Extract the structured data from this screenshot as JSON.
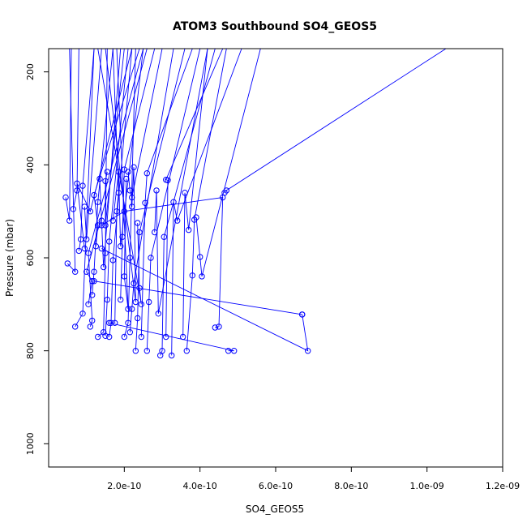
{
  "colors": {
    "series": "#0000ff",
    "axis": "#000000",
    "background": "#ffffff"
  },
  "chart_data": {
    "type": "line",
    "title": "ATOM3 Southbound SO4_GEOS5",
    "xlabel": "SO4_GEOS5",
    "ylabel": "Pressure (mbar)",
    "xlim": [
      0,
      1.2e-09
    ],
    "ylim": [
      1050,
      150
    ],
    "y_reversed": true,
    "grid": false,
    "x_ticks": [
      {
        "value": 2e-10,
        "label": "2.0e-10"
      },
      {
        "value": 4e-10,
        "label": "4.0e-10"
      },
      {
        "value": 6e-10,
        "label": "6.0e-10"
      },
      {
        "value": 8e-10,
        "label": "8.0e-10"
      },
      {
        "value": 1e-09,
        "label": "1.0e-09"
      },
      {
        "value": 1.2e-09,
        "label": "1.2e-09"
      }
    ],
    "y_ticks": [
      {
        "value": 200,
        "label": "200"
      },
      {
        "value": 400,
        "label": "400"
      },
      {
        "value": 600,
        "label": "600"
      },
      {
        "value": 800,
        "label": "800"
      },
      {
        "value": 1000,
        "label": "1000"
      }
    ],
    "series": [
      {
        "x": [
          4.5e-11,
          5.5e-11,
          6e-11
        ],
        "y": [
          470,
          520,
          150
        ]
      },
      {
        "x": [
          5e-11,
          7e-11,
          5.5e-11
        ],
        "y": [
          612,
          630,
          150
        ]
      },
      {
        "x": [
          6.5e-11,
          7.5e-11,
          8e-11
        ],
        "y": [
          495,
          455,
          150
        ]
      },
      {
        "x": [
          7e-11,
          9e-11,
          1.2e-10
        ],
        "y": [
          748,
          720,
          150
        ]
      },
      {
        "x": [
          8e-11,
          8.5e-11,
          9e-11,
          1.2e-10
        ],
        "y": [
          585,
          560,
          445,
          150
        ]
      },
      {
        "x": [
          9.5e-11,
          1e-10,
          1.4e-10
        ],
        "y": [
          490,
          560,
          150
        ]
      },
      {
        "x": [
          1.1e-10,
          1.15e-10,
          1.05e-10,
          2.5e-10
        ],
        "y": [
          748,
          735,
          590,
          150
        ]
      },
      {
        "x": [
          1.15e-10,
          1.2e-10,
          1.3e-10,
          1.7e-10
        ],
        "y": [
          680,
          630,
          480,
          150
        ]
      },
      {
        "x": [
          1.3e-10,
          1.45e-10,
          1.5e-10,
          1.55e-10
        ],
        "y": [
          770,
          760,
          590,
          150
        ]
      },
      {
        "x": [
          1.35e-10,
          1.4e-10,
          1.45e-10,
          1.9e-10
        ],
        "y": [
          430,
          520,
          620,
          150
        ]
      },
      {
        "x": [
          1.5e-10,
          1.55e-10,
          1.6e-10,
          2.1e-10
        ],
        "y": [
          768,
          690,
          565,
          150
        ]
      },
      {
        "x": [
          1.6e-10,
          1.65e-10,
          1.7e-10,
          2.2e-10
        ],
        "y": [
          770,
          740,
          605,
          150
        ]
      },
      {
        "x": [
          1.75e-10,
          1.8e-10,
          1.85e-10,
          1.7e-10
        ],
        "y": [
          740,
          500,
          460,
          150
        ]
      },
      {
        "x": [
          1.9e-10,
          1.95e-10,
          2e-10,
          2.8e-10
        ],
        "y": [
          690,
          555,
          410,
          150
        ]
      },
      {
        "x": [
          2e-10,
          2.1e-10,
          2.15e-10,
          2.3e-10
        ],
        "y": [
          770,
          740,
          600,
          150
        ]
      },
      {
        "x": [
          2.1e-10,
          2.15e-10,
          2.2e-10,
          3e-10
        ],
        "y": [
          415,
          455,
          470,
          150
        ]
      },
      {
        "x": [
          2.15e-10,
          2.2e-10,
          2.25e-10,
          3.3e-10
        ],
        "y": [
          760,
          710,
          655,
          150
        ]
      },
      {
        "x": [
          2.3e-10,
          2.35e-10,
          2.4e-10,
          3.6e-10
        ],
        "y": [
          800,
          730,
          545,
          150
        ]
      },
      {
        "x": [
          2.45e-10,
          2.55e-10,
          2.6e-10,
          3.8e-10
        ],
        "y": [
          770,
          482,
          418,
          150
        ]
      },
      {
        "x": [
          2.6e-10,
          2.65e-10,
          2.7e-10,
          4e-10
        ],
        "y": [
          800,
          695,
          600,
          150
        ]
      },
      {
        "x": [
          2.8e-10,
          2.85e-10,
          2.9e-10,
          4.2e-10
        ],
        "y": [
          545,
          455,
          720,
          150
        ]
      },
      {
        "x": [
          2.95e-10,
          3e-10,
          3.05e-10,
          4.4e-10
        ],
        "y": [
          810,
          800,
          555,
          150
        ]
      },
      {
        "x": [
          3.1e-10,
          3.15e-10,
          3.1e-10,
          4.6e-10
        ],
        "y": [
          770,
          433,
          432,
          150
        ]
      },
      {
        "x": [
          3.25e-10,
          3.3e-10,
          3.4e-10,
          5.1e-10
        ],
        "y": [
          810,
          480,
          520,
          150
        ]
      },
      {
        "x": [
          3.55e-10,
          3.6e-10,
          3.7e-10,
          4.2e-10
        ],
        "y": [
          770,
          460,
          540,
          150
        ]
      },
      {
        "x": [
          3.65e-10,
          3.8e-10,
          3.85e-10,
          4.7e-10
        ],
        "y": [
          800,
          638,
          518,
          150
        ]
      },
      {
        "x": [
          3.9e-10,
          4e-10,
          4.05e-10,
          5.6e-10
        ],
        "y": [
          513,
          598,
          640,
          150
        ]
      },
      {
        "x": [
          4.4e-10,
          4.5e-10,
          4.6e-10,
          2e-10,
          1.4e-10
        ],
        "y": [
          750,
          748,
          470,
          500,
          530
        ]
      },
      {
        "x": [
          4.65e-10,
          4.7e-10,
          1.05e-09
        ],
        "y": [
          460,
          455,
          150
        ]
      },
      {
        "x": [
          4.75e-10,
          4.9e-10,
          1.6e-10
        ],
        "y": [
          800,
          800,
          740
        ]
      },
      {
        "x": [
          6.7e-10,
          6.85e-10,
          1.4e-10
        ],
        "y": [
          722,
          800,
          580
        ]
      },
      {
        "x": [
          1.2e-10,
          6.7e-10
        ],
        "y": [
          650,
          722
        ]
      },
      {
        "x": [
          9.5e-11,
          7.5e-11,
          1.1e-10,
          2.2e-10
        ],
        "y": [
          580,
          440,
          500,
          150
        ]
      },
      {
        "x": [
          1.25e-10,
          1.3e-10,
          1.2e-10,
          2.4e-10
        ],
        "y": [
          575,
          530,
          465,
          150
        ]
      },
      {
        "x": [
          1.55e-10,
          1.5e-10,
          1.5e-10,
          2e-10
        ],
        "y": [
          415,
          435,
          530,
          150
        ]
      },
      {
        "x": [
          1.7e-10,
          1.85e-10,
          1.9e-10,
          2.5e-10
        ],
        "y": [
          520,
          415,
          575,
          150
        ]
      },
      {
        "x": [
          2.05e-10,
          2e-10,
          2.1e-10,
          1.8e-10
        ],
        "y": [
          430,
          640,
          710,
          150
        ]
      },
      {
        "x": [
          2.2e-10,
          2.25e-10,
          2.3e-10,
          1.5e-10
        ],
        "y": [
          490,
          405,
          695,
          150
        ]
      },
      {
        "x": [
          2.35e-10,
          2.4e-10,
          2.45e-10,
          1.3e-10
        ],
        "y": [
          525,
          665,
          700,
          150
        ]
      },
      {
        "x": [
          1.05e-10,
          1.15e-10,
          1e-10,
          2.6e-10
        ],
        "y": [
          700,
          650,
          630,
          150
        ]
      }
    ]
  }
}
